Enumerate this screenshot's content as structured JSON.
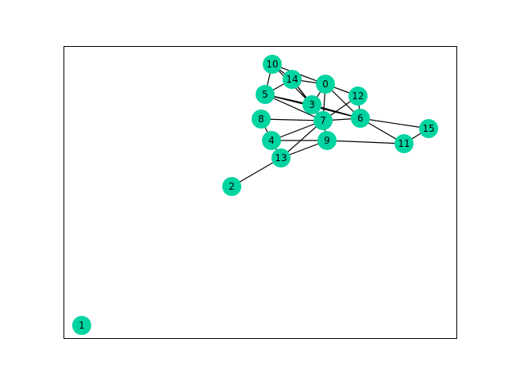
{
  "graph": {
    "node_color": "#00d4a0",
    "edge_color": "#000000",
    "frame_color": "#000000",
    "nodes": [
      {
        "id": "0"
      },
      {
        "id": "1"
      },
      {
        "id": "2"
      },
      {
        "id": "3"
      },
      {
        "id": "4"
      },
      {
        "id": "5"
      },
      {
        "id": "6"
      },
      {
        "id": "7"
      },
      {
        "id": "8"
      },
      {
        "id": "9"
      },
      {
        "id": "10"
      },
      {
        "id": "11"
      },
      {
        "id": "12"
      },
      {
        "id": "13"
      },
      {
        "id": "14"
      },
      {
        "id": "15"
      }
    ],
    "edges": [
      [
        "10",
        "14"
      ],
      [
        "10",
        "5"
      ],
      [
        "10",
        "0"
      ],
      [
        "10",
        "3"
      ],
      [
        "14",
        "5"
      ],
      [
        "14",
        "0"
      ],
      [
        "14",
        "3"
      ],
      [
        "14",
        "7"
      ],
      [
        "0",
        "3"
      ],
      [
        "0",
        "12"
      ],
      [
        "0",
        "6"
      ],
      [
        "0",
        "7"
      ],
      [
        "5",
        "3"
      ],
      [
        "5",
        "7"
      ],
      [
        "5",
        "6"
      ],
      [
        "12",
        "6"
      ],
      [
        "12",
        "7"
      ],
      [
        "3",
        "6"
      ],
      [
        "3",
        "7"
      ],
      [
        "8",
        "7"
      ],
      [
        "8",
        "4"
      ],
      [
        "7",
        "6"
      ],
      [
        "7",
        "4"
      ],
      [
        "7",
        "9"
      ],
      [
        "7",
        "13"
      ],
      [
        "6",
        "15"
      ],
      [
        "6",
        "11"
      ],
      [
        "15",
        "11"
      ],
      [
        "4",
        "9"
      ],
      [
        "4",
        "13"
      ],
      [
        "9",
        "11"
      ],
      [
        "9",
        "13"
      ],
      [
        "13",
        "2"
      ]
    ]
  }
}
